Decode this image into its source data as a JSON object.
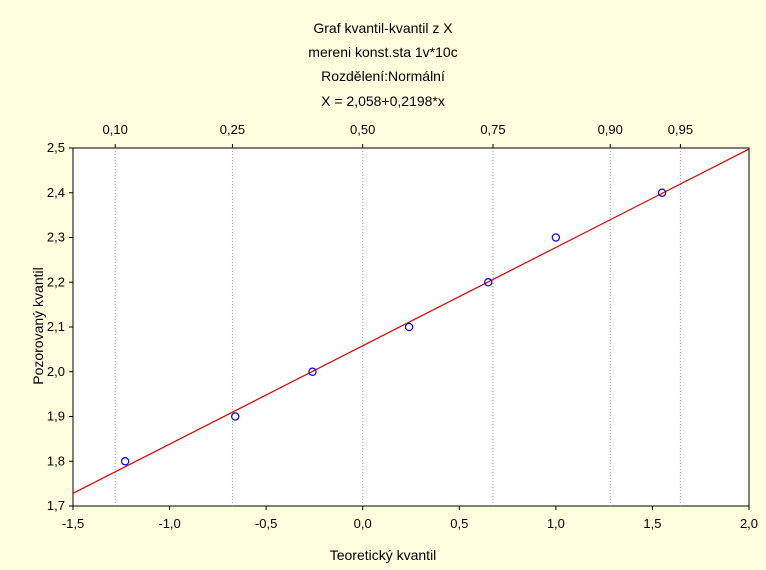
{
  "title_lines": [
    "Graf kvantil-kvantil z X",
    "mereni konst.sta 1v*10c",
    "Rozdělení:Normální",
    "X = 2,058+0,2198*x"
  ],
  "chart_data": {
    "type": "scatter",
    "xlabel": "Teoretický kvantil",
    "ylabel": "Pozorovaný kvantil",
    "xlim": [
      -1.5,
      2.0
    ],
    "ylim": [
      1.7,
      2.5
    ],
    "x_ticks": [
      "-1,5",
      "-1,0",
      "-0,5",
      "0,0",
      "0,5",
      "1,0",
      "1,5",
      "2,0"
    ],
    "y_ticks": [
      "1,7",
      "1,8",
      "1,9",
      "2,0",
      "2,1",
      "2,2",
      "2,3",
      "2,4",
      "2,5"
    ],
    "top_axis_probabilities": [
      {
        "p": 0.1,
        "label": "0,10",
        "z": -1.2816
      },
      {
        "p": 0.25,
        "label": "0,25",
        "z": -0.6745
      },
      {
        "p": 0.5,
        "label": "0,50",
        "z": 0.0
      },
      {
        "p": 0.75,
        "label": "0,75",
        "z": 0.6745
      },
      {
        "p": 0.9,
        "label": "0,90",
        "z": 1.2816
      },
      {
        "p": 0.95,
        "label": "0,95",
        "z": 1.6449
      }
    ],
    "series": [
      {
        "points": [
          {
            "x": -1.23,
            "y": 1.8
          },
          {
            "x": -0.66,
            "y": 1.9
          },
          {
            "x": -0.26,
            "y": 2.0
          },
          {
            "x": 0.24,
            "y": 2.1
          },
          {
            "x": 0.65,
            "y": 2.2
          },
          {
            "x": 1.0,
            "y": 2.3
          },
          {
            "x": 1.55,
            "y": 2.4
          }
        ]
      }
    ],
    "fit_line": {
      "intercept": 2.058,
      "slope": 0.2198
    },
    "grid": {
      "vertical_at_probabilities": true,
      "style": "dotted"
    },
    "colors": {
      "points": "#0000ff",
      "fit_line": "#e00000",
      "background": "#ffffe0",
      "plot_area": "#ffffff",
      "grid": "#a0a0a0"
    }
  }
}
